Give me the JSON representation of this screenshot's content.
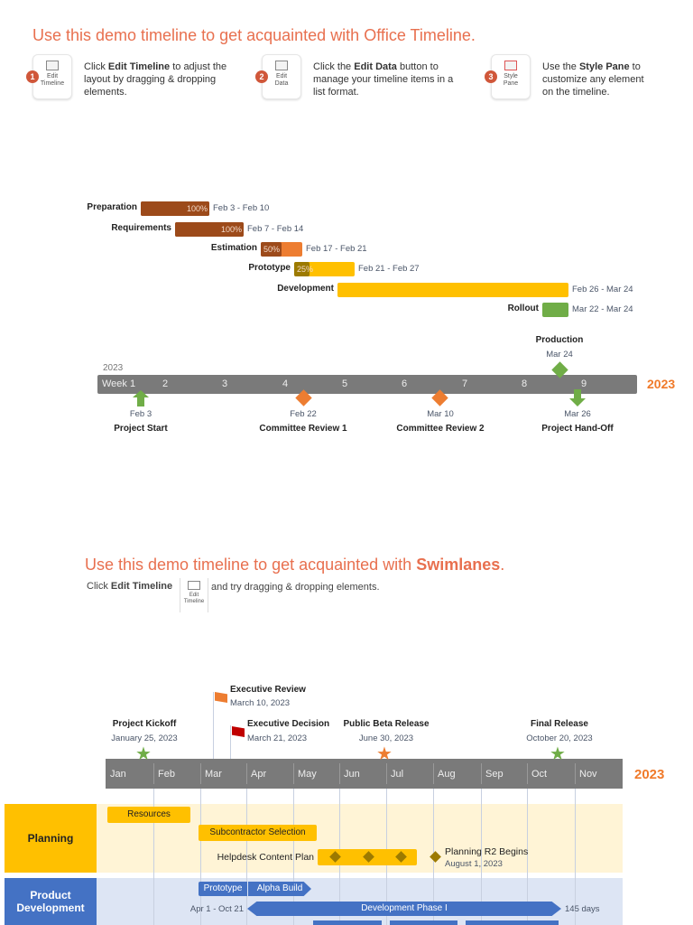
{
  "intro": {
    "title": "Use this demo timeline to get acquainted with Office Timeline.",
    "steps": [
      {
        "num": "1",
        "icon_label1": "Edit",
        "icon_label2": "Timeline",
        "pre": "Click ",
        "bold": "Edit Timeline",
        "post": " to adjust the layout by dragging & dropping elements."
      },
      {
        "num": "2",
        "icon_label1": "Edit",
        "icon_label2": "Data",
        "pre": "Click the ",
        "bold": "Edit Data",
        "post": " button to manage your timeline items in a list format."
      },
      {
        "num": "3",
        "icon_label1": "Style",
        "icon_label2": "Pane",
        "pre": "Use the ",
        "bold": "Style Pane",
        "post": " to customize any element on the timeline."
      }
    ]
  },
  "gantt": {
    "tasks": [
      {
        "name": "Preparation",
        "percent": "100%",
        "dates": "Feb 3 - Feb 10",
        "progress": 1.0
      },
      {
        "name": "Requirements",
        "percent": "100%",
        "dates": "Feb 7 - Feb 14",
        "progress": 1.0
      },
      {
        "name": "Estimation",
        "percent": "50%",
        "dates": "Feb 17 - Feb 21",
        "progress": 0.5
      },
      {
        "name": "Prototype",
        "percent": "25%",
        "dates": "Feb 21 - Feb 27",
        "progress": 0.25
      },
      {
        "name": "Development",
        "percent": "",
        "dates": "Feb 26 - Mar 24",
        "progress": 0
      },
      {
        "name": "Rollout",
        "percent": "",
        "dates": "Mar 22 - Mar 24",
        "progress": 0
      }
    ],
    "year_left": "2023",
    "year_right": "2023",
    "weeks": [
      "Week 1",
      "2",
      "3",
      "4",
      "5",
      "6",
      "7",
      "8",
      "9"
    ],
    "milestones": [
      {
        "title": "Project Start",
        "date": "Feb 3"
      },
      {
        "title": "Committee Review 1",
        "date": "Feb 22"
      },
      {
        "title": "Committee Review 2",
        "date": "Mar 10"
      },
      {
        "title": "Project Hand-Off",
        "date": "Mar 26"
      },
      {
        "title": "Production",
        "date": "Mar 24"
      }
    ]
  },
  "swim_intro": {
    "pre": "Use this demo timeline to get acquainted with ",
    "bold": "Swimlanes",
    "post": ".",
    "click": "Click ",
    "click_bold": "Edit Timeline",
    "icon_label1": "Edit",
    "icon_label2": "Timeline",
    "after": "and try dragging & dropping elements."
  },
  "swim": {
    "year": "2023",
    "months": [
      "Jan",
      "Feb",
      "Mar",
      "Apr",
      "May",
      "Jun",
      "Jul",
      "Aug",
      "Sep",
      "Oct",
      "Nov"
    ],
    "milestones": [
      {
        "title": "Project Kickoff",
        "date": "January 25, 2023"
      },
      {
        "title": "Executive Review",
        "date": "March 10, 2023"
      },
      {
        "title": "Executive Decision",
        "date": "March 21, 2023"
      },
      {
        "title": "Public Beta Release",
        "date": "June 30, 2023"
      },
      {
        "title": "Final Release",
        "date": "October 20, 2023"
      }
    ],
    "lanes": [
      {
        "name": "Planning",
        "tasks": [
          "Resources",
          "Subcontractor Selection",
          "Helpdesk Content Plan"
        ],
        "milestone": {
          "title": "Planning R2 Begins",
          "date": "August 1, 2023"
        }
      },
      {
        "name": "Product Development",
        "tasks": [
          "Prototype",
          "Alpha Build",
          "Development Phase I"
        ],
        "range": "Apr 1 - Oct 21",
        "duration": "145 days"
      }
    ]
  },
  "colors": {
    "accent": "#e8704f",
    "brown": "#9c4a1a",
    "orange": "#ed7d31",
    "yellow": "#ffc000",
    "green": "#70ad47",
    "blue": "#4472c4"
  }
}
